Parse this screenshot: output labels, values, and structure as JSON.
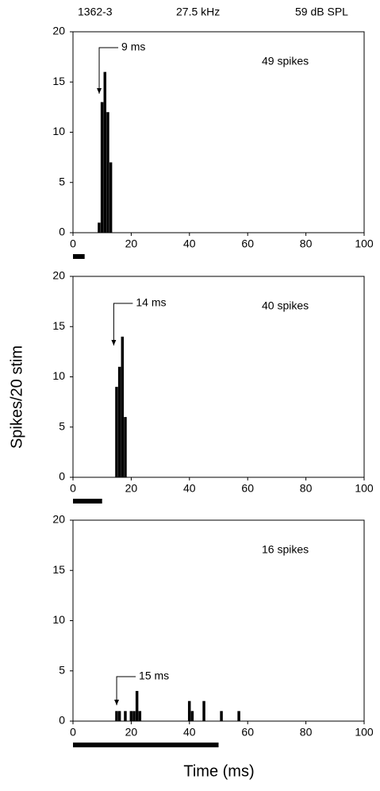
{
  "header": [
    "1362-3",
    "27.5 kHz",
    "59 dB SPL"
  ],
  "y_label": "Spikes/20 stim",
  "x_label": "Time (ms)",
  "chart_data": [
    {
      "type": "bar",
      "x": [
        9,
        10,
        11,
        12,
        13
      ],
      "values": [
        1,
        13,
        16,
        12,
        7
      ],
      "color": "#000000",
      "xlim": [
        0,
        100
      ],
      "xticks": [
        0,
        20,
        40,
        60,
        80,
        100
      ],
      "ylim": [
        0,
        20
      ],
      "yticks": [
        0,
        5,
        10,
        15,
        20
      ],
      "annotation": "49 spikes",
      "arrow": {
        "value": 9,
        "label": "9 ms"
      },
      "stimulus": [
        0,
        4
      ]
    },
    {
      "type": "bar",
      "x": [
        15,
        16,
        17,
        18
      ],
      "values": [
        9,
        11,
        14,
        6
      ],
      "color": "#000000",
      "xlim": [
        0,
        100
      ],
      "xticks": [
        0,
        20,
        40,
        60,
        80,
        100
      ],
      "ylim": [
        0,
        20
      ],
      "yticks": [
        0,
        5,
        10,
        15,
        20
      ],
      "annotation": "40 spikes",
      "arrow": {
        "value": 14,
        "label": "14 ms"
      },
      "stimulus": [
        0,
        10
      ]
    },
    {
      "type": "bar",
      "x": [
        15,
        16,
        18,
        20,
        21,
        22,
        23,
        40,
        41,
        45,
        51,
        57
      ],
      "values": [
        1,
        1,
        1,
        1,
        1,
        3,
        1,
        2,
        1,
        2,
        1,
        1
      ],
      "color": "#000000",
      "xlim": [
        0,
        100
      ],
      "xticks": [
        0,
        20,
        40,
        60,
        80,
        100
      ],
      "ylim": [
        0,
        20
      ],
      "yticks": [
        0,
        5,
        10,
        15,
        20
      ],
      "annotation": "16 spikes",
      "arrow": {
        "value": 15,
        "label": "15 ms"
      },
      "stimulus": [
        0,
        50
      ]
    }
  ]
}
